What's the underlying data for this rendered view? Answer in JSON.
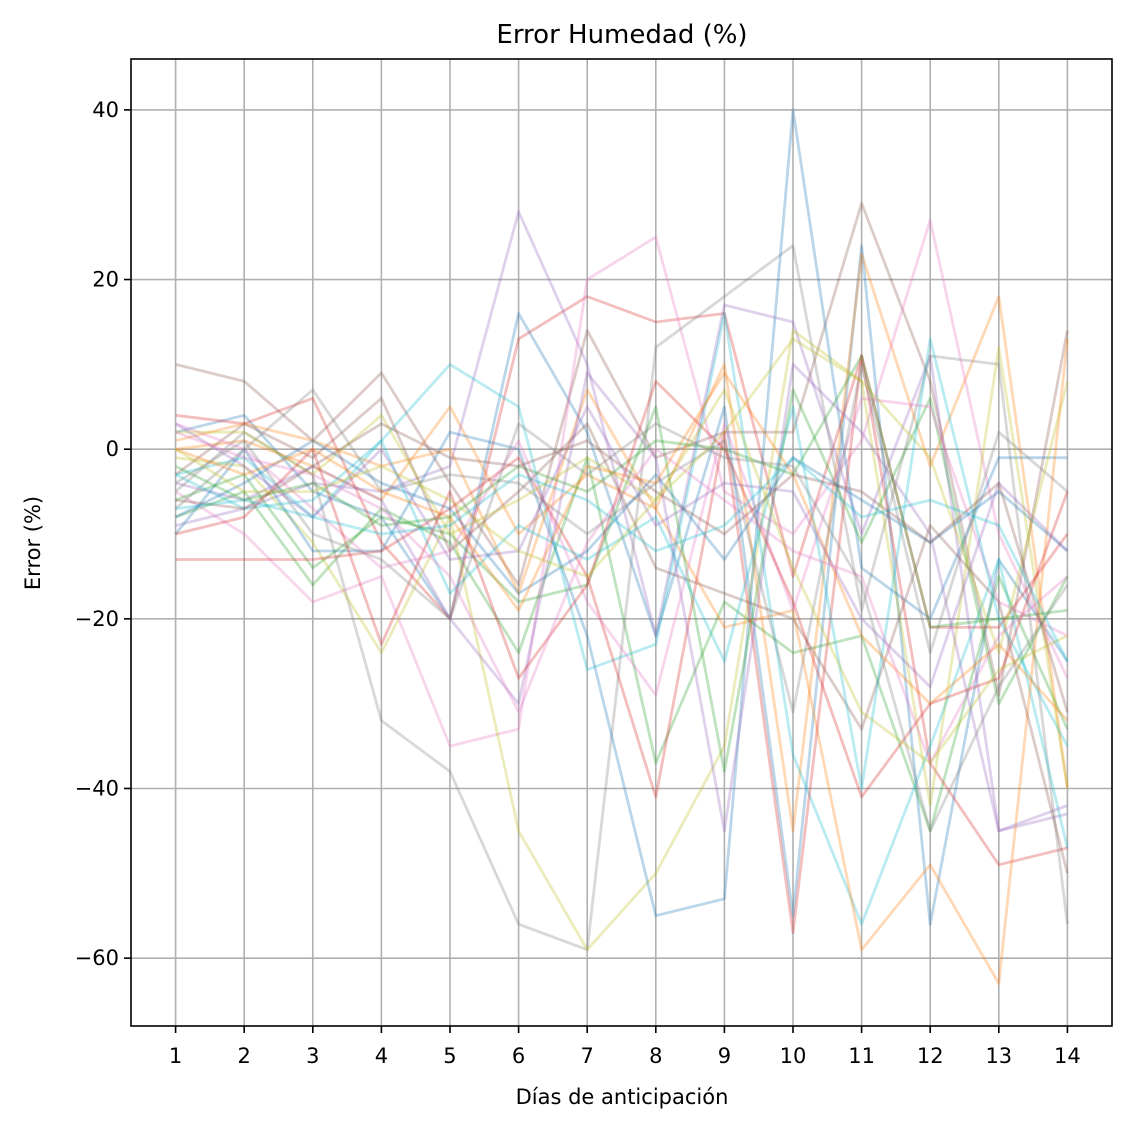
{
  "chart_data": {
    "type": "line",
    "title": "Error Humedad (%)",
    "xlabel": "Días de anticipación",
    "ylabel": "Error (%)",
    "x": [
      1,
      2,
      3,
      4,
      5,
      6,
      7,
      8,
      9,
      10,
      11,
      12,
      13,
      14
    ],
    "x_tick_labels": [
      "1",
      "2",
      "3",
      "4",
      "5",
      "6",
      "7",
      "8",
      "9",
      "10",
      "11",
      "12",
      "13",
      "14"
    ],
    "y_ticks": [
      40,
      20,
      0,
      -20,
      -40,
      -60
    ],
    "y_tick_labels": [
      "40",
      "20",
      "0",
      "−20",
      "−40",
      "−60"
    ],
    "xlim": [
      0.35,
      14.65
    ],
    "ylim": [
      -68,
      46
    ],
    "grid": true,
    "colors": [
      "#1f77b4",
      "#ff7f0e",
      "#2ca02c",
      "#d62728",
      "#9467bd",
      "#8c564b",
      "#e377c2",
      "#7f7f7f",
      "#bcbd22",
      "#17becf"
    ],
    "series": [
      {
        "values": [
          2,
          4,
          -5,
          -8,
          -20,
          16,
          2,
          -22,
          5,
          -55,
          24,
          -56,
          -13,
          -25
        ]
      },
      {
        "values": [
          0,
          1,
          -2,
          -6,
          5,
          -10,
          -3,
          -7,
          10,
          -45,
          23,
          -2,
          18,
          -40
        ]
      },
      {
        "values": [
          -8,
          -5,
          -16,
          -7,
          -11,
          -24,
          -1,
          -37,
          -18,
          -24,
          -22,
          -45,
          -15,
          -33
        ]
      },
      {
        "values": [
          4,
          3,
          6,
          -11,
          -20,
          13,
          18,
          15,
          16,
          -15,
          11,
          -37,
          -49,
          -47
        ]
      },
      {
        "values": [
          -9,
          -7,
          -4,
          -5,
          -2,
          28,
          10,
          -22,
          17,
          15,
          -10,
          11,
          -45,
          -43
        ]
      },
      {
        "values": [
          10,
          8,
          1,
          9,
          -4,
          -16,
          14,
          -1,
          2,
          2,
          29,
          8,
          -29,
          14
        ]
      },
      {
        "values": [
          -5,
          -10,
          -18,
          -15,
          -35,
          -33,
          20,
          25,
          -5,
          -10,
          1,
          27,
          -10,
          -27
        ]
      },
      {
        "values": [
          -5,
          2,
          -3,
          -32,
          -38,
          -56,
          -59,
          12,
          18,
          24,
          -19,
          11,
          10,
          -56
        ]
      },
      {
        "values": [
          -1,
          -2,
          -11,
          -24,
          -8,
          -45,
          -59,
          -50,
          -35,
          14,
          8,
          -42,
          12,
          -40
        ]
      },
      {
        "values": [
          -3,
          -1,
          -8,
          1,
          10,
          5,
          -26,
          -23,
          16,
          -36,
          -56,
          -35,
          -13,
          -47
        ]
      },
      {
        "values": [
          -10,
          0,
          -12,
          -12,
          2,
          0,
          -22,
          -55,
          -53,
          40,
          -14,
          -20,
          -1,
          -1
        ]
      },
      {
        "values": [
          1,
          3,
          1,
          -2,
          0,
          -17,
          7,
          -7,
          -21,
          -19,
          -59,
          -49,
          -63,
          13
        ]
      },
      {
        "values": [
          -6,
          -3,
          -14,
          -8,
          -10,
          -18,
          -16,
          5,
          -38,
          7,
          -11,
          6,
          -30,
          -15
        ]
      },
      {
        "values": [
          -13,
          -13,
          -13,
          -12,
          -7,
          -1,
          -15,
          -41,
          2,
          -57,
          11,
          -21,
          -21,
          -10
        ]
      },
      {
        "values": [
          -4,
          -6,
          -2,
          -6,
          -20,
          -30,
          9,
          -1,
          -45,
          10,
          2,
          -10,
          -45,
          -42
        ]
      },
      {
        "values": [
          -3,
          3,
          -1,
          6,
          -12,
          -5,
          3,
          -14,
          -17,
          -20,
          -33,
          -9,
          -18,
          -50
        ]
      },
      {
        "values": [
          3,
          0,
          -7,
          -14,
          -12,
          1,
          -18,
          -29,
          3,
          -19,
          6,
          5,
          -18,
          -22
        ]
      },
      {
        "values": [
          -7,
          0,
          7,
          -5,
          -3,
          -4,
          -10,
          -4,
          1,
          -31,
          10,
          -24,
          2,
          -5
        ]
      },
      {
        "values": [
          2,
          2,
          -3,
          4,
          -10,
          -6,
          -1,
          -6,
          2,
          13,
          8,
          -1,
          -24,
          8
        ]
      },
      {
        "values": [
          -3,
          -7,
          -6,
          1,
          -17,
          -9,
          -13,
          -8,
          -25,
          5,
          -40,
          13,
          -20,
          -35
        ]
      },
      {
        "values": [
          -8,
          -4,
          1,
          -4,
          -7,
          -17,
          -12,
          -3,
          -13,
          -1,
          -6,
          -11,
          -5,
          -12
        ]
      },
      {
        "values": [
          0,
          -3,
          0,
          -5,
          -8,
          -19,
          -2,
          -4,
          9,
          -3,
          -22,
          -30,
          -23,
          -32
        ]
      },
      {
        "values": [
          -2,
          -6,
          -4,
          -9,
          -8,
          -2,
          -5,
          1,
          0,
          -3,
          11,
          -21,
          -20,
          -19
        ]
      },
      {
        "values": [
          -10,
          -8,
          0,
          -23,
          -5,
          -27,
          -16,
          8,
          0,
          -18,
          -41,
          -30,
          -27,
          -5
        ]
      },
      {
        "values": [
          3,
          -2,
          -8,
          0,
          -13,
          -12,
          5,
          -9,
          -4,
          -5,
          -20,
          -28,
          -4,
          -12
        ]
      },
      {
        "values": [
          -6,
          -7,
          -2,
          3,
          -1,
          -2,
          1,
          -5,
          -10,
          -3,
          -5,
          -11,
          -4,
          -31
        ]
      },
      {
        "values": [
          2,
          -1,
          -3,
          -7,
          -15,
          -31,
          -11,
          0,
          -6,
          -12,
          -15,
          -37,
          -22,
          -15
        ]
      },
      {
        "values": [
          -4,
          1,
          -10,
          -13,
          -20,
          3,
          -3,
          3,
          -1,
          -2,
          -16,
          -45,
          -28,
          -16
        ]
      },
      {
        "values": [
          0,
          -5,
          -5,
          -2,
          -6,
          -12,
          -15,
          -6,
          7,
          -14,
          -31,
          -37,
          -26,
          -22
        ]
      },
      {
        "values": [
          -7,
          -6,
          -8,
          -10,
          -9,
          -3,
          -6,
          -12,
          -9,
          -1,
          -8,
          -6,
          -9,
          -25
        ]
      }
    ]
  }
}
